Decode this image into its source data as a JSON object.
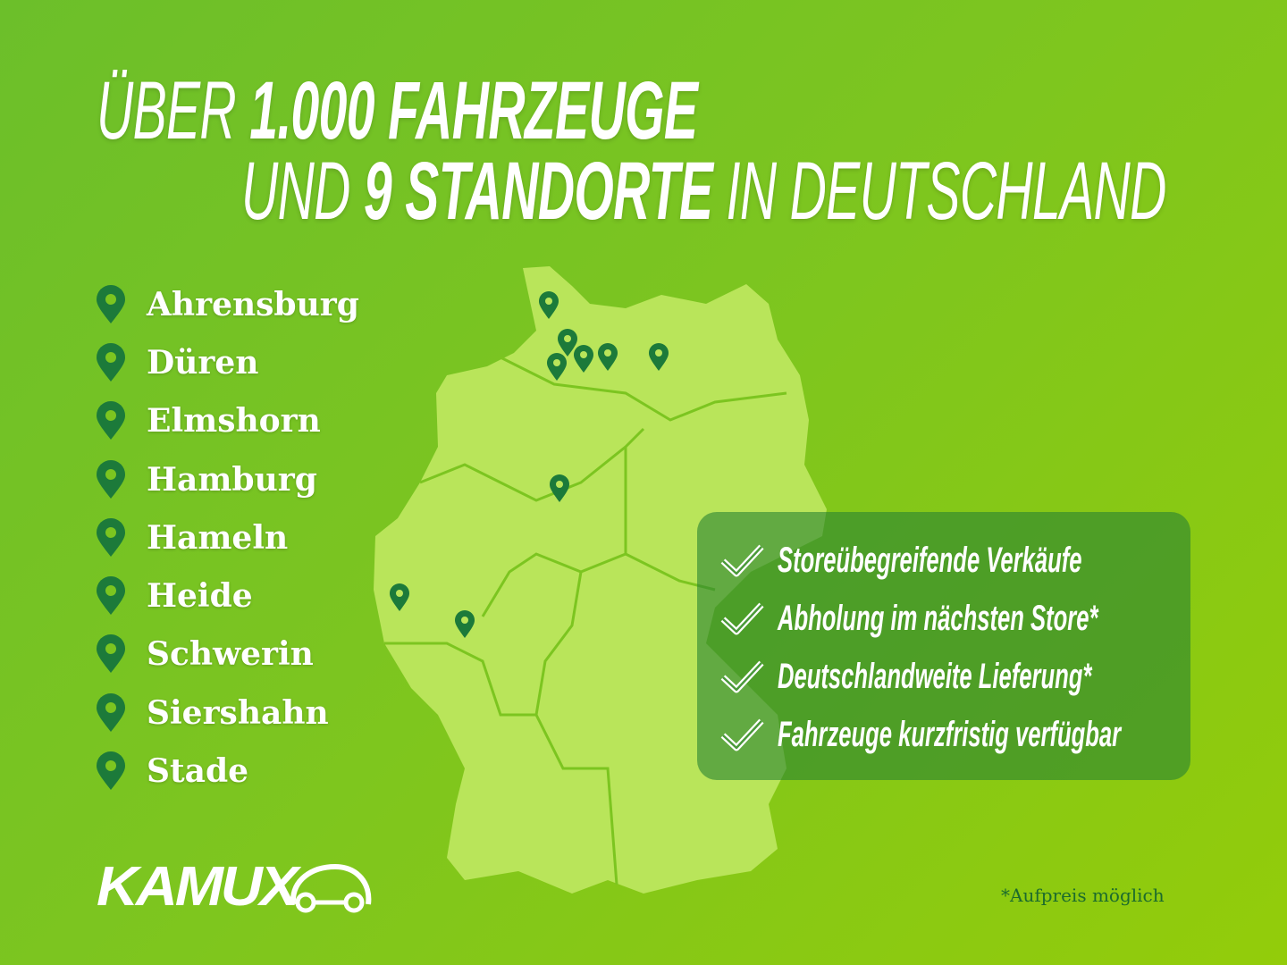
{
  "headline": {
    "line1_light": "ÜBER",
    "line1_bold": "1.000 FAHRZEUGE",
    "line2_light_a": "UND",
    "line2_bold": "9 STANDORTE",
    "line2_light_b": "IN DEUTSCHLAND"
  },
  "locations": [
    "Ahrensburg",
    "Düren",
    "Elmshorn",
    "Hamburg",
    "Hameln",
    "Heide",
    "Schwerin",
    "Siershahn",
    "Stade"
  ],
  "features": [
    "Storeübegreifende Verkäufe",
    "Abholung im nächsten Store*",
    "Deutschlandweite Lieferung*",
    "Fahrzeuge kurzfristig verfügbar"
  ],
  "footnote": "*Aufpreis möglich",
  "logo": "KAMUX",
  "colors": {
    "pin": "#1c7a3a",
    "map": "#b9e55a",
    "background": "#7cc520"
  }
}
